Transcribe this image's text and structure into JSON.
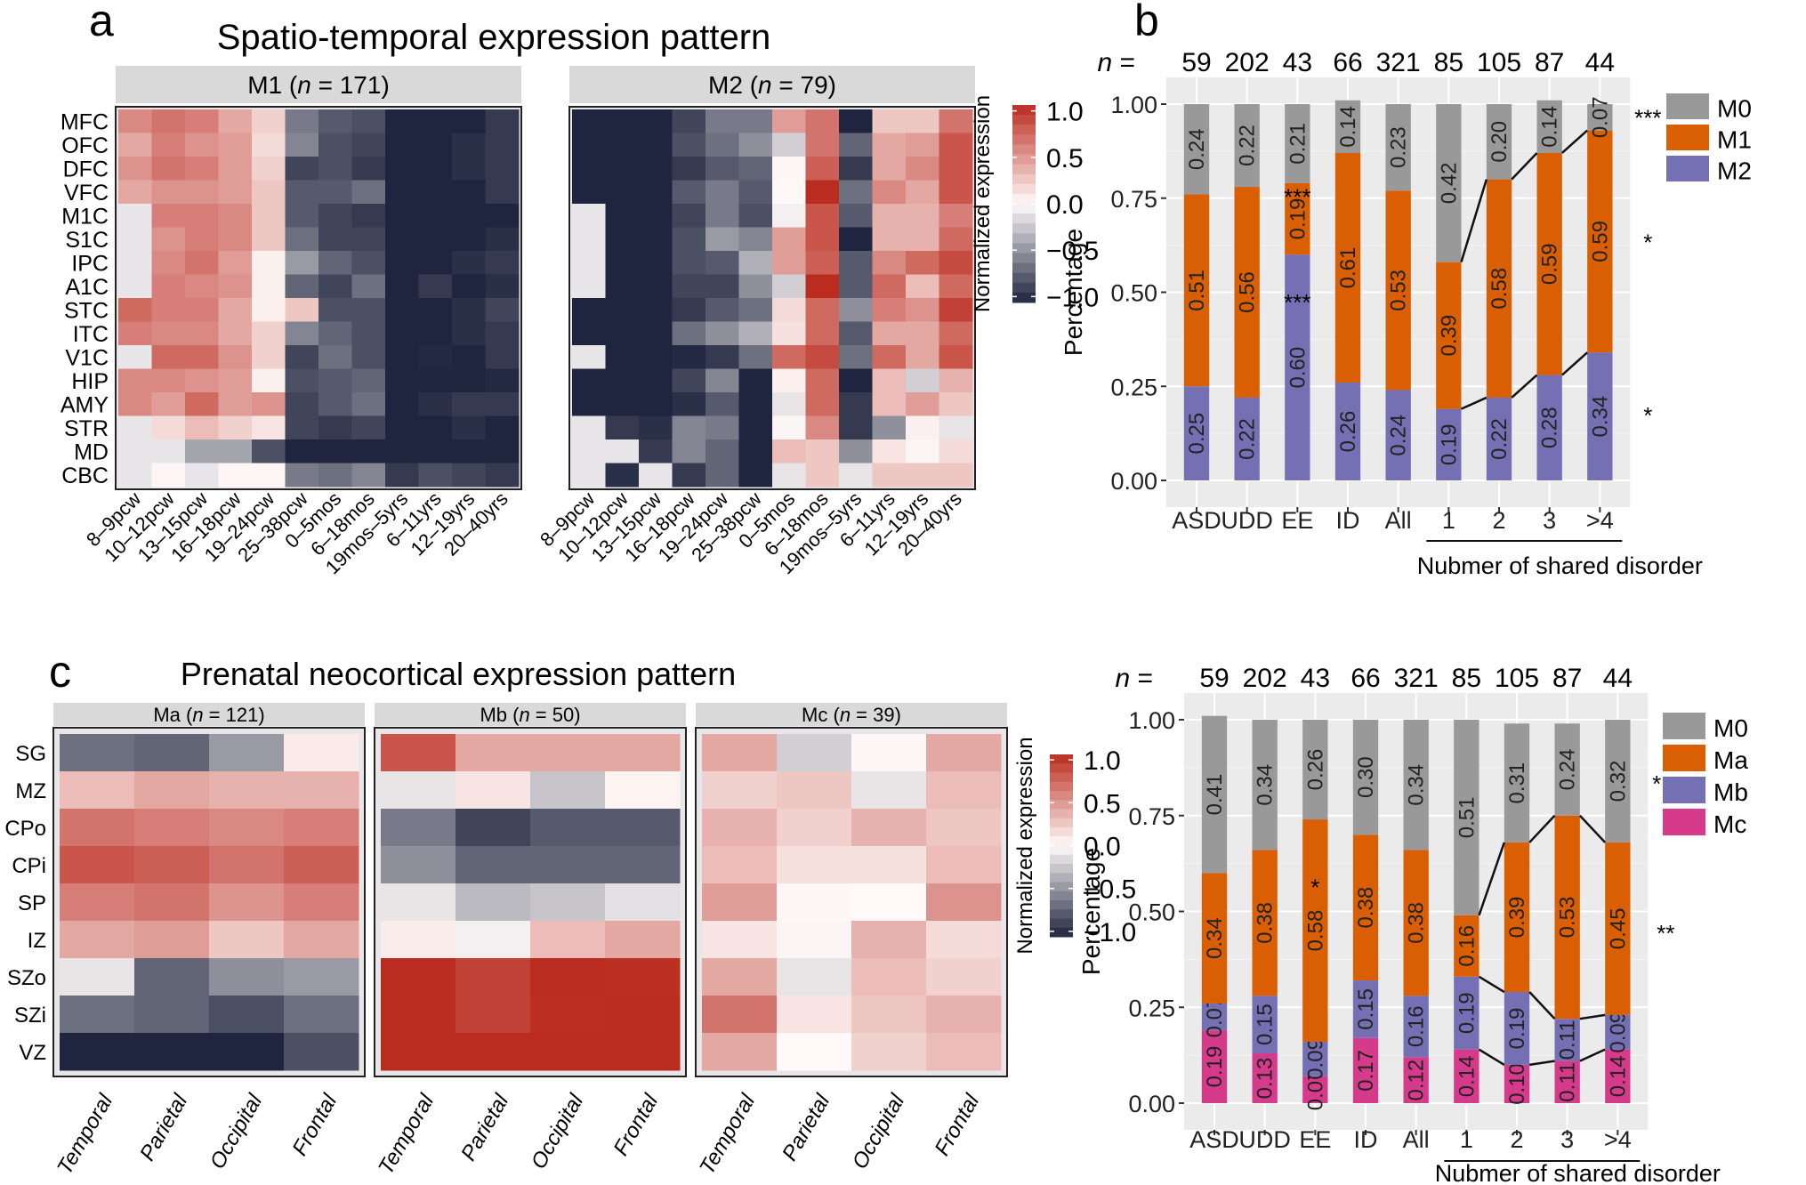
{
  "panel_labels": {
    "a": "a",
    "b": "b",
    "c": "c"
  },
  "chart_data": [
    {
      "id": "a",
      "type": "heatmap",
      "title": "Spatio-temporal expression pattern",
      "rows": [
        "MFC",
        "OFC",
        "DFC",
        "VFC",
        "M1C",
        "S1C",
        "IPC",
        "A1C",
        "STC",
        "ITC",
        "V1C",
        "HIP",
        "AMY",
        "STR",
        "MD",
        "CBC"
      ],
      "columns": [
        "8–9pcw",
        "10–12pcw",
        "13–15pcw",
        "16–18pcw",
        "19–24pcw",
        "25–38pcw",
        "0–5mos",
        "6–18mos",
        "19mos–5yrs",
        "6–11yrs",
        "12–19yrs",
        "20–40yrs"
      ],
      "legend": {
        "title": "Normalized expression",
        "ticks": [
          "1.0",
          "0.5",
          "0.0",
          "−0.5",
          "−1.0"
        ],
        "range": [
          -1,
          1
        ]
      },
      "facets": [
        {
          "name": "M1",
          "n_label": "n",
          "n_value": "171",
          "values": [
            [
              0.55,
              0.65,
              0.6,
              0.4,
              0.2,
              -0.6,
              -0.75,
              -0.8,
              -1,
              -1,
              -1,
              -0.9
            ],
            [
              0.4,
              0.6,
              0.5,
              0.45,
              0.15,
              -0.55,
              -0.8,
              -0.85,
              -1,
              -1,
              -0.95,
              -0.9
            ],
            [
              0.5,
              0.65,
              0.6,
              0.45,
              0.2,
              -0.85,
              -0.8,
              -0.9,
              -1,
              -1,
              -0.95,
              -0.9
            ],
            [
              0.4,
              0.5,
              0.5,
              0.45,
              0.25,
              -0.75,
              -0.75,
              -0.65,
              -1,
              -1,
              -1,
              -0.9
            ],
            [
              null,
              0.6,
              0.6,
              0.55,
              0.25,
              -0.75,
              -0.85,
              -0.9,
              -1,
              -1,
              -1,
              -1
            ],
            [
              null,
              0.5,
              0.6,
              0.55,
              0.25,
              -0.65,
              -0.85,
              -0.85,
              -1,
              -1,
              -1,
              -0.95
            ],
            [
              null,
              0.55,
              0.65,
              0.45,
              0.05,
              -0.45,
              -0.7,
              -0.8,
              -1,
              -1,
              -0.95,
              -0.9
            ],
            [
              null,
              0.6,
              0.55,
              0.5,
              0.05,
              -0.7,
              -0.85,
              -0.65,
              -1,
              -0.9,
              -1,
              -0.95
            ],
            [
              0.7,
              0.6,
              0.6,
              0.4,
              0.05,
              0.25,
              -0.8,
              -0.8,
              -1,
              -1,
              -0.95,
              -0.85
            ],
            [
              0.6,
              0.55,
              0.55,
              0.4,
              0.2,
              -0.55,
              -0.7,
              -0.8,
              -1,
              -1,
              -0.95,
              -0.9
            ],
            [
              null,
              0.7,
              0.7,
              0.5,
              0.2,
              -0.85,
              -0.65,
              -0.8,
              -1,
              -0.98,
              -1,
              -0.9
            ],
            [
              0.55,
              0.55,
              0.5,
              0.45,
              0.05,
              -0.8,
              -0.75,
              -0.7,
              -1,
              -1,
              -1,
              -0.98
            ],
            [
              0.55,
              0.45,
              0.7,
              0.45,
              0.5,
              -0.85,
              -0.75,
              -0.65,
              -1,
              -0.95,
              -0.9,
              -0.9
            ],
            [
              null,
              0.15,
              0.3,
              0.2,
              0.1,
              -0.85,
              -0.9,
              -0.85,
              -1,
              -1,
              -0.95,
              -1
            ],
            [
              null,
              null,
              -0.4,
              -0.4,
              -0.8,
              -1,
              -1,
              -1,
              -1,
              -1,
              -1,
              -1
            ],
            [
              null,
              0.02,
              null,
              0.02,
              0.02,
              -0.6,
              -0.65,
              -0.55,
              -0.9,
              -0.8,
              -0.85,
              -0.9
            ]
          ]
        },
        {
          "name": "M2",
          "n_label": "n",
          "n_value": "79",
          "values": [
            [
              -1,
              -1,
              -1,
              -0.85,
              -0.6,
              -0.6,
              0.45,
              0.65,
              -1,
              0.25,
              0.25,
              0.65
            ],
            [
              -1,
              -1,
              -1,
              -0.8,
              -0.65,
              -0.5,
              -0.2,
              0.65,
              -0.7,
              0.4,
              0.45,
              0.8
            ],
            [
              -1,
              -1,
              -1,
              -0.9,
              -0.75,
              -0.7,
              0.02,
              0.75,
              -0.9,
              0.4,
              0.55,
              0.8
            ],
            [
              -1,
              -1,
              -1,
              -0.75,
              -0.6,
              -0.75,
              0.01,
              1.0,
              -0.65,
              0.55,
              0.4,
              0.8
            ],
            [
              null,
              -1,
              -1,
              -0.85,
              -0.6,
              -0.8,
              -0.05,
              0.8,
              -0.75,
              0.35,
              0.35,
              0.6
            ],
            [
              null,
              -1,
              -1,
              -0.8,
              -0.45,
              -0.55,
              0.45,
              0.8,
              -1,
              0.35,
              0.35,
              0.7
            ],
            [
              null,
              -1,
              -1,
              -0.8,
              -0.75,
              -0.35,
              0.45,
              0.75,
              -0.75,
              0.55,
              0.7,
              0.85
            ],
            [
              null,
              -1,
              -1,
              -0.85,
              -0.85,
              -0.5,
              -0.2,
              1.0,
              -0.75,
              0.7,
              0.3,
              0.7
            ],
            [
              -1,
              -1,
              -1,
              -0.9,
              -0.75,
              -0.65,
              0.15,
              0.7,
              -0.5,
              0.6,
              0.5,
              0.9
            ],
            [
              -1,
              -1,
              -1,
              -0.65,
              -0.5,
              -0.35,
              0.12,
              0.7,
              -0.75,
              0.4,
              0.4,
              0.7
            ],
            [
              null,
              -1,
              -1,
              -0.98,
              -0.9,
              -0.65,
              0.7,
              0.85,
              -0.65,
              0.7,
              0.4,
              0.8
            ],
            [
              -1,
              -1,
              -1,
              -0.85,
              -0.55,
              -1,
              0.05,
              0.7,
              -1,
              0.3,
              -0.2,
              0.35
            ],
            [
              -1,
              -1,
              -1,
              -0.95,
              -0.75,
              -1,
              -0.1,
              0.7,
              -0.9,
              0.3,
              0.45,
              0.25
            ],
            [
              null,
              -0.9,
              -0.95,
              -0.55,
              -0.6,
              -1,
              -0.02,
              0.55,
              -0.9,
              -0.5,
              0.05,
              -0.1
            ],
            [
              null,
              null,
              -0.9,
              -0.55,
              -0.7,
              -1,
              0.3,
              0.25,
              -0.5,
              0.1,
              -0.02,
              0.15
            ],
            [
              null,
              -0.95,
              null,
              -0.9,
              -0.7,
              -1,
              -0.1,
              0.25,
              -0.1,
              0.25,
              0.25,
              0.25
            ]
          ]
        }
      ]
    },
    {
      "id": "b",
      "type": "bar",
      "stacked": true,
      "categories": [
        "ASD",
        "UDD",
        "EE",
        "ID",
        "All",
        "1",
        "2",
        "3",
        ">4"
      ],
      "n_prefix": "n =",
      "n_values": [
        "59",
        "202",
        "43",
        "66",
        "321",
        "85",
        "105",
        "87",
        "44"
      ],
      "ylabel": "Percentage",
      "xlabel_group": "Nubmer of shared disorder",
      "ylim": [
        0,
        1
      ],
      "yticks": [
        "0.00",
        "0.25",
        "0.50",
        "0.75",
        "1.00"
      ],
      "series": [
        {
          "name": "M2",
          "color": "#7570b3",
          "values": [
            0.25,
            0.22,
            0.6,
            0.26,
            0.24,
            0.19,
            0.22,
            0.28,
            0.34
          ],
          "labels": [
            "0.25",
            "0.22",
            "0.60",
            "0.26",
            "0.24",
            "0.19",
            "0.22",
            "0.28",
            "0.34"
          ]
        },
        {
          "name": "M1",
          "color": "#d95f02",
          "values": [
            0.51,
            0.56,
            0.19,
            0.61,
            0.53,
            0.39,
            0.58,
            0.59,
            0.59
          ],
          "labels": [
            "0.51",
            "0.56",
            "0.19",
            "0.61",
            "0.53",
            "0.39",
            "0.58",
            "0.59",
            "0.59"
          ]
        },
        {
          "name": "M0",
          "color": "#999999",
          "values": [
            0.24,
            0.22,
            0.21,
            0.14,
            0.23,
            0.42,
            0.2,
            0.14,
            0.07
          ],
          "labels": [
            "0.24",
            "0.22",
            "0.21",
            "0.14",
            "0.23",
            "0.42",
            "0.20",
            "0.14",
            "0.07"
          ]
        }
      ],
      "legend_order": [
        "M0",
        "M1",
        "M2"
      ],
      "legend_position": "right",
      "annotations": [
        {
          "text": "***",
          "category": "EE",
          "y": 0.76
        },
        {
          "text": "***",
          "category": "EE",
          "y": 0.48
        },
        {
          "text": "***",
          "side": "right",
          "y": 0.97
        },
        {
          "text": "*",
          "side": "right",
          "y": 0.64
        },
        {
          "text": "*",
          "side": "right",
          "y": 0.18
        }
      ]
    },
    {
      "id": "c",
      "type": "heatmap",
      "title": "Prenatal neocortical expression pattern",
      "rows": [
        "SG",
        "MZ",
        "CPo",
        "CPi",
        "SP",
        "IZ",
        "SZo",
        "SZi",
        "VZ"
      ],
      "columns": [
        "Temporal",
        "Parietal",
        "Occipital",
        "Frontal"
      ],
      "legend": {
        "title": "Normalized expression",
        "ticks": [
          "1.0",
          "0.5",
          "0.0",
          "−0.5",
          "−1.0"
        ],
        "range": [
          -1,
          1
        ]
      },
      "facets": [
        {
          "name": "Ma",
          "n_label": "n",
          "n_value": "121",
          "values": [
            [
              -0.65,
              -0.7,
              -0.45,
              0.08
            ],
            [
              0.3,
              0.4,
              0.35,
              0.35
            ],
            [
              0.65,
              0.6,
              0.55,
              0.6
            ],
            [
              0.8,
              0.75,
              0.65,
              0.75
            ],
            [
              0.6,
              0.65,
              0.5,
              0.6
            ],
            [
              0.4,
              0.45,
              0.25,
              0.4
            ],
            [
              -0.1,
              -0.7,
              -0.5,
              -0.45
            ],
            [
              -0.65,
              -0.7,
              -0.8,
              -0.65
            ],
            [
              -1,
              -1,
              -1,
              -0.8
            ]
          ]
        },
        {
          "name": "Mb",
          "n_label": "n",
          "n_value": "50",
          "values": [
            [
              0.8,
              0.4,
              0.4,
              0.4
            ],
            [
              -0.1,
              0.1,
              -0.25,
              0.03
            ],
            [
              -0.6,
              -0.85,
              -0.75,
              -0.75
            ],
            [
              -0.5,
              -0.7,
              -0.7,
              -0.7
            ],
            [
              -0.1,
              -0.3,
              -0.25,
              -0.12
            ],
            [
              0.07,
              -0.05,
              0.3,
              0.4
            ],
            [
              1.0,
              0.9,
              1.0,
              0.98
            ],
            [
              1.0,
              0.9,
              0.98,
              1.0
            ],
            [
              1.0,
              1.0,
              1.0,
              1.0
            ]
          ]
        },
        {
          "name": "Mc",
          "n_label": "n",
          "n_value": "39",
          "values": [
            [
              0.4,
              -0.2,
              -0.01,
              0.4
            ],
            [
              0.2,
              0.25,
              -0.1,
              0.3
            ],
            [
              0.35,
              0.2,
              0.35,
              0.25
            ],
            [
              0.3,
              0.12,
              0.12,
              0.3
            ],
            [
              0.45,
              -0.01,
              0.0,
              0.5
            ],
            [
              0.1,
              -0.02,
              0.35,
              0.15
            ],
            [
              0.4,
              -0.1,
              0.3,
              0.2
            ],
            [
              0.65,
              0.1,
              0.25,
              0.35
            ],
            [
              0.4,
              0.0,
              0.2,
              0.3
            ]
          ]
        }
      ]
    },
    {
      "id": "d",
      "type": "bar",
      "stacked": true,
      "categories": [
        "ASD",
        "UDD",
        "EE",
        "ID",
        "All",
        "1",
        "2",
        "3",
        ">4"
      ],
      "n_prefix": "n =",
      "n_values": [
        "59",
        "202",
        "43",
        "66",
        "321",
        "85",
        "105",
        "87",
        "44"
      ],
      "ylabel": "Percentage",
      "xlabel_group": "Nubmer of shared disorder",
      "ylim": [
        0,
        1
      ],
      "yticks": [
        "0.00",
        "0.25",
        "0.50",
        "0.75",
        "1.00"
      ],
      "series": [
        {
          "name": "Mc",
          "color": "#d63b8b",
          "values": [
            0.19,
            0.13,
            0.07,
            0.17,
            0.12,
            0.14,
            0.1,
            0.11,
            0.14
          ],
          "labels": [
            "0.19",
            "0.13",
            "0.07",
            "0.17",
            "0.12",
            "0.14",
            "0.10",
            "0.11",
            "0.14"
          ]
        },
        {
          "name": "Mb",
          "color": "#7570b3",
          "values": [
            0.07,
            0.15,
            0.09,
            0.15,
            0.16,
            0.19,
            0.19,
            0.11,
            0.09
          ],
          "labels": [
            "0.07",
            "0.15",
            "0.09",
            "0.15",
            "0.16",
            "0.19",
            "0.19",
            "0.11",
            "0.09"
          ]
        },
        {
          "name": "Ma",
          "color": "#d95f02",
          "values": [
            0.34,
            0.38,
            0.58,
            0.38,
            0.38,
            0.16,
            0.39,
            0.53,
            0.45
          ],
          "labels": [
            "0.34",
            "0.38",
            "0.58",
            "0.38",
            "0.38",
            "0.16",
            "0.39",
            "0.53",
            "0.45"
          ]
        },
        {
          "name": "M0",
          "color": "#999999",
          "values": [
            0.41,
            0.34,
            0.26,
            0.3,
            0.34,
            0.51,
            0.31,
            0.24,
            0.32
          ],
          "labels": [
            "0.41",
            "0.34",
            "0.26",
            "0.30",
            "0.34",
            "0.51",
            "0.31",
            "0.24",
            "0.32"
          ]
        }
      ],
      "legend_order": [
        "M0",
        "Ma",
        "Mb",
        "Mc"
      ],
      "legend_position": "right",
      "annotations": [
        {
          "text": "*",
          "category": "EE",
          "y": 0.57
        },
        {
          "text": "***",
          "side": "right",
          "y": 0.84
        },
        {
          "text": "**",
          "side": "right",
          "y": 0.45
        }
      ]
    }
  ]
}
